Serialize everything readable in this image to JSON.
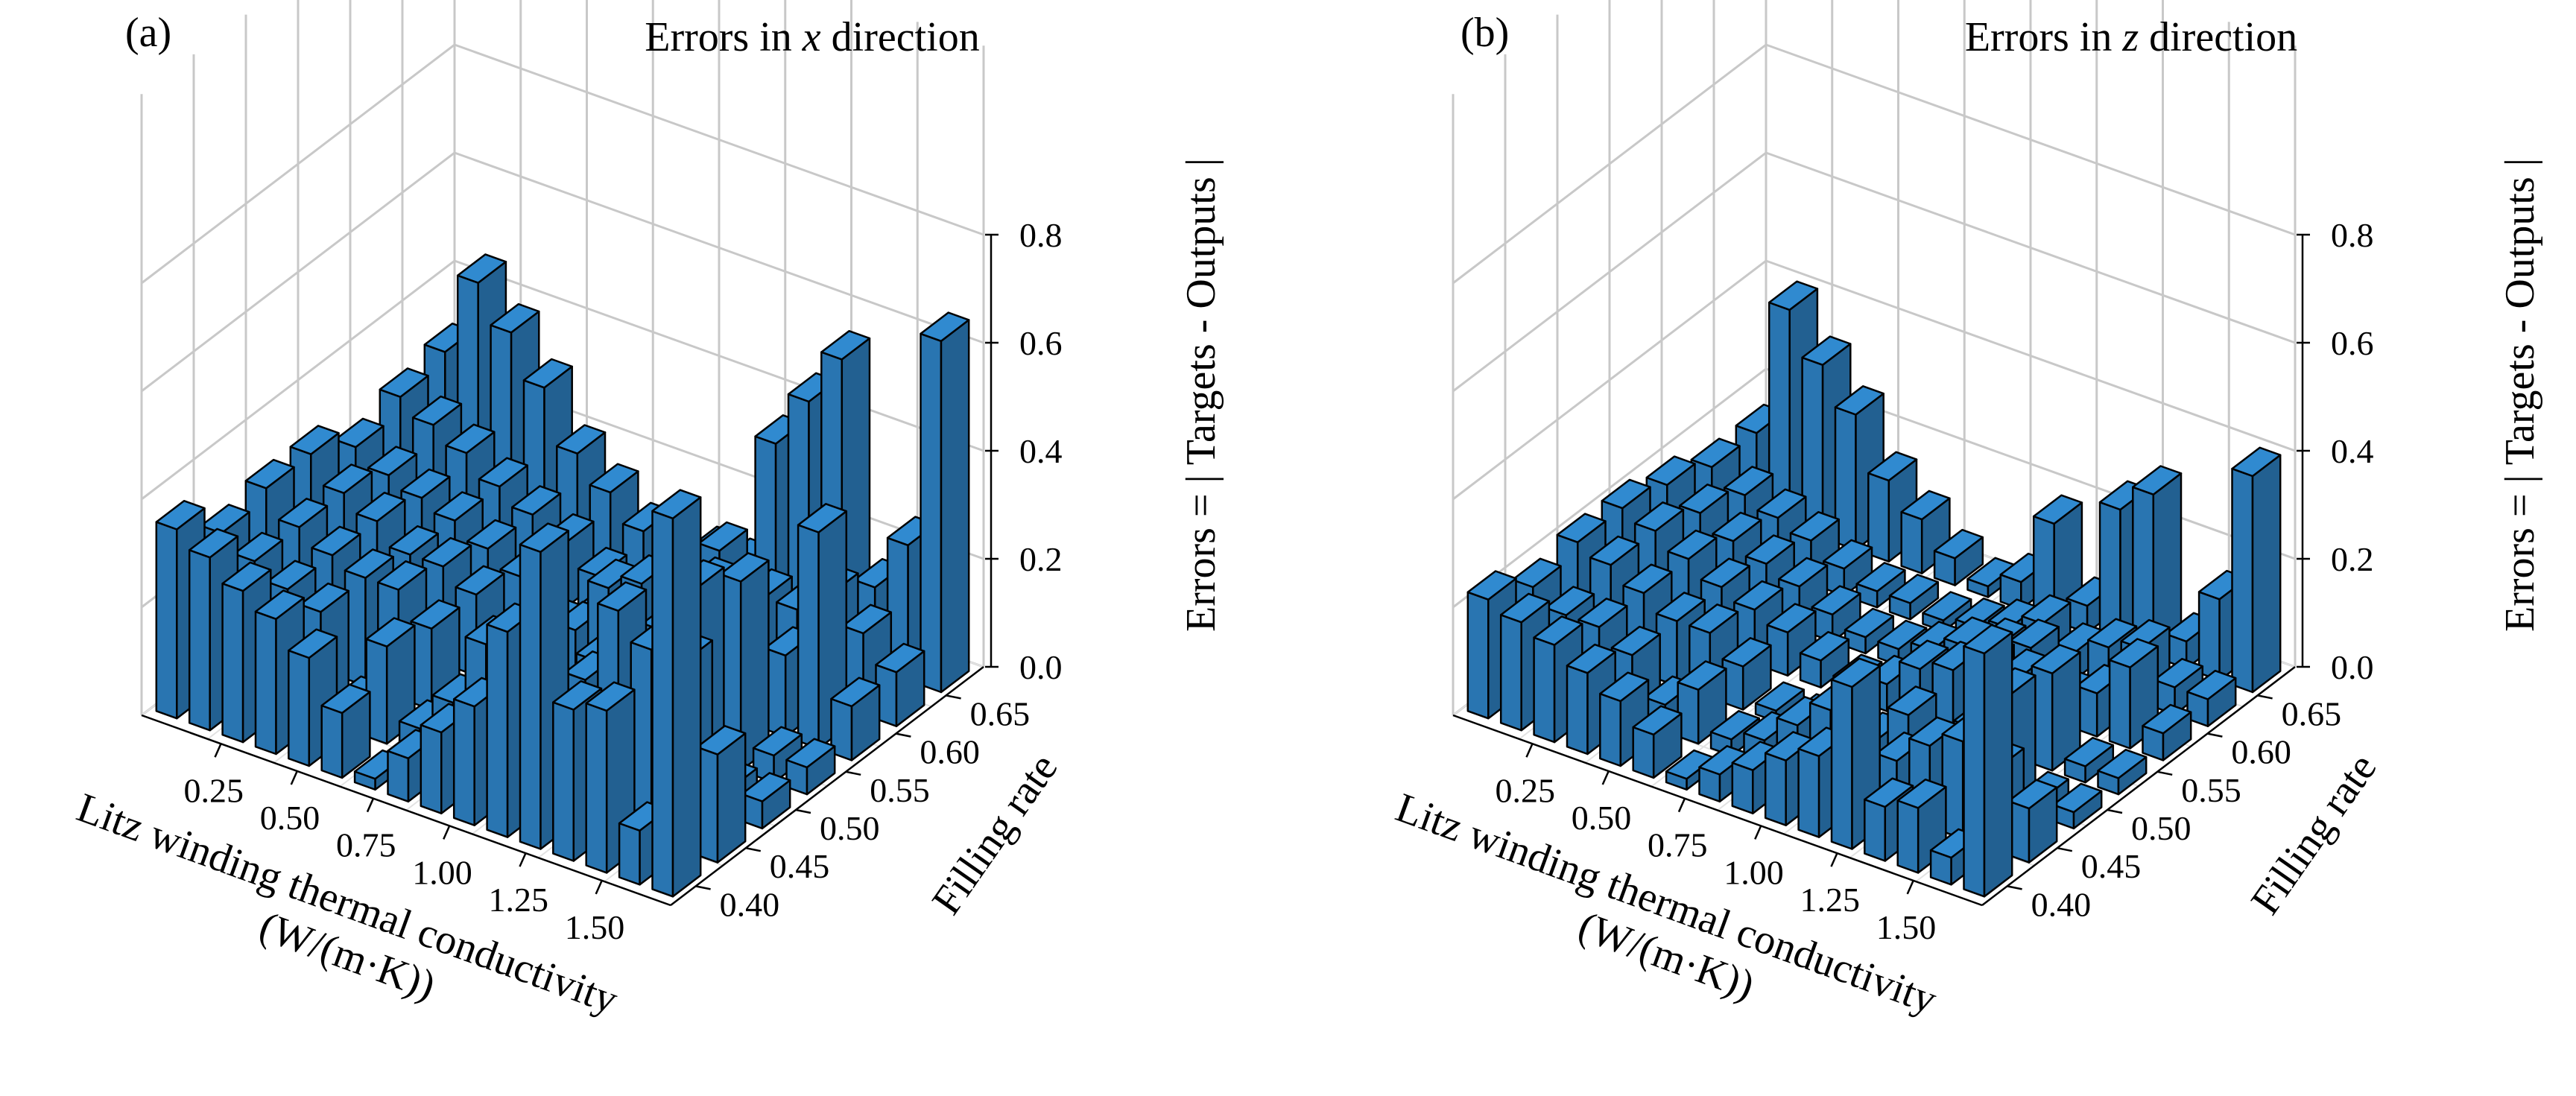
{
  "bar_color": "#2b7bba",
  "bar_edge": "#000000",
  "chart_data": [
    {
      "type": "bar3d",
      "panel_label": "(a)",
      "title_prefix": "Errors in ",
      "title_var": "x",
      "title_suffix": " direction",
      "xlabel_line1": "Litz winding thermal conductivity",
      "xlabel_line2": "(W/(m·K))",
      "ylabel": "Filling rate",
      "zlabel": "Errors = | Targets - Outputs |",
      "x_tick_labels": [
        "0.25",
        "0.50",
        "0.75",
        "1.00",
        "1.25",
        "1.50"
      ],
      "y_tick_labels": [
        "0.40",
        "0.45",
        "0.50",
        "0.55",
        "0.60",
        "0.65"
      ],
      "z_tick_labels": [
        "0.0",
        "0.2",
        "0.4",
        "0.6",
        "0.8"
      ],
      "zlim": [
        0,
        0.8
      ],
      "x_values": [
        0.1,
        0.2,
        0.3,
        0.4,
        0.5,
        0.6,
        0.7,
        0.8,
        0.9,
        1.0,
        1.1,
        1.2,
        1.3,
        1.4,
        1.5,
        1.6
      ],
      "y_values": [
        0.4,
        0.45,
        0.5,
        0.55,
        0.6,
        0.65,
        0.7
      ],
      "values": [
        [
          0.35,
          0.28,
          0.3,
          0.3,
          0.25,
          0.28,
          0.3
        ],
        [
          0.32,
          0.25,
          0.25,
          0.25,
          0.22,
          0.25,
          0.45
        ],
        [
          0.28,
          0.22,
          0.22,
          0.22,
          0.2,
          0.22,
          0.38
        ],
        [
          0.25,
          0.2,
          0.2,
          0.18,
          0.18,
          0.18,
          0.3
        ],
        [
          0.2,
          0.05,
          0.2,
          0.18,
          0.15,
          0.15,
          0.2
        ],
        [
          0.12,
          0.18,
          0.15,
          0.15,
          0.12,
          0.12,
          0.15
        ],
        [
          0.02,
          0.05,
          0.03,
          0.1,
          0.05,
          0.08,
          0.1
        ],
        [
          0.08,
          0.12,
          0.02,
          0.08,
          0.08,
          0.05,
          0.05
        ],
        [
          0.15,
          0.25,
          0.1,
          0.15,
          0.12,
          0.1,
          0.1
        ],
        [
          0.22,
          0.3,
          0.05,
          0.25,
          0.2,
          0.1,
          0.1
        ],
        [
          0.38,
          0.1,
          0.2,
          0.28,
          0.25,
          0.15,
          0.35
        ],
        [
          0.55,
          0.25,
          0.05,
          0.3,
          0.3,
          0.15,
          0.45
        ],
        [
          0.28,
          0.4,
          0.3,
          0.32,
          0.1,
          0.15,
          0.55
        ],
        [
          0.3,
          0.35,
          0.4,
          0.35,
          0.15,
          0.2,
          0.15
        ],
        [
          0.1,
          0.35,
          0.05,
          0.05,
          0.4,
          0.15,
          0.25
        ],
        [
          0.7,
          0.2,
          0.05,
          0.05,
          0.1,
          0.1,
          0.65
        ]
      ]
    },
    {
      "type": "bar3d",
      "panel_label": "(b)",
      "title_prefix": "Errors in ",
      "title_var": "z",
      "title_suffix": " direction",
      "xlabel_line1": "Litz winding thermal conductivity",
      "xlabel_line2": "(W/(m·K))",
      "ylabel": "Filling rate",
      "zlabel": "Errors = | Targets - Outputs |",
      "x_tick_labels": [
        "0.25",
        "0.50",
        "0.75",
        "1.00",
        "1.25",
        "1.50"
      ],
      "y_tick_labels": [
        "0.40",
        "0.45",
        "0.50",
        "0.55",
        "0.60",
        "0.65"
      ],
      "z_tick_labels": [
        "0.0",
        "0.2",
        "0.4",
        "0.6",
        "0.8"
      ],
      "zlim": [
        0,
        0.8
      ],
      "x_values": [
        0.1,
        0.2,
        0.3,
        0.4,
        0.5,
        0.6,
        0.7,
        0.8,
        0.9,
        1.0,
        1.1,
        1.2,
        1.3,
        1.4,
        1.5,
        1.6
      ],
      "y_values": [
        0.4,
        0.45,
        0.5,
        0.55,
        0.6,
        0.65,
        0.7
      ],
      "values": [
        [
          0.22,
          0.18,
          0.2,
          0.2,
          0.18,
          0.15,
          0.15
        ],
        [
          0.2,
          0.15,
          0.18,
          0.18,
          0.15,
          0.12,
          0.4
        ],
        [
          0.18,
          0.15,
          0.15,
          0.15,
          0.12,
          0.1,
          0.32
        ],
        [
          0.15,
          0.12,
          0.12,
          0.12,
          0.1,
          0.08,
          0.25
        ],
        [
          0.12,
          0.05,
          0.12,
          0.1,
          0.08,
          0.05,
          0.15
        ],
        [
          0.08,
          0.1,
          0.08,
          0.08,
          0.05,
          0.03,
          0.1
        ],
        [
          0.02,
          0.03,
          0.02,
          0.05,
          0.03,
          0.03,
          0.05
        ],
        [
          0.05,
          0.05,
          0.02,
          0.03,
          0.03,
          0.02,
          0.02
        ],
        [
          0.08,
          0.1,
          0.05,
          0.05,
          0.05,
          0.03,
          0.05
        ],
        [
          0.12,
          0.15,
          0.03,
          0.1,
          0.08,
          0.05,
          0.18
        ],
        [
          0.15,
          0.05,
          0.1,
          0.12,
          0.1,
          0.08,
          0.05
        ],
        [
          0.3,
          0.1,
          0.03,
          0.15,
          0.12,
          0.05,
          0.25
        ],
        [
          0.1,
          0.15,
          0.12,
          0.15,
          0.05,
          0.08,
          0.3
        ],
        [
          0.12,
          0.18,
          0.2,
          0.18,
          0.08,
          0.1,
          0.05
        ],
        [
          0.05,
          0.15,
          0.03,
          0.03,
          0.15,
          0.05,
          0.15
        ],
        [
          0.45,
          0.1,
          0.03,
          0.03,
          0.05,
          0.05,
          0.4
        ]
      ]
    }
  ]
}
